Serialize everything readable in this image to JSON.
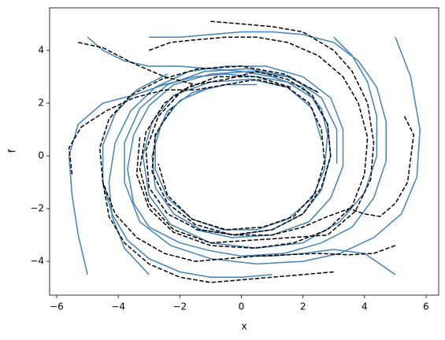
{
  "chart_data": {
    "type": "line",
    "xlabel": "x",
    "ylabel": "f",
    "xlim": [
      -6.23,
      6.41
    ],
    "ylim": [
      -5.28,
      5.61
    ],
    "xticks": [
      {
        "value": -6,
        "label": "−6"
      },
      {
        "value": -4,
        "label": "−4"
      },
      {
        "value": -2,
        "label": "−2"
      },
      0,
      2,
      4,
      6
    ],
    "yticks": [
      {
        "value": -4,
        "label": "−4"
      },
      {
        "value": -2,
        "label": "−2"
      },
      0,
      2,
      4
    ],
    "series": [
      {
        "color": "#4682b4",
        "dashed": false,
        "x": [
          -5,
          -4.5,
          -3.8,
          -3,
          -2,
          -1,
          0,
          1,
          2,
          2.6,
          2.8,
          2.7,
          2.3,
          1.5,
          0.5,
          -0.6,
          -1.6,
          -2.4,
          -2.8,
          -2.8,
          -2.4,
          -1.6,
          -0.5,
          0.5
        ],
        "values": [
          4.5,
          4.0,
          3.6,
          3.4,
          3.4,
          3.3,
          3.2,
          3.0,
          2.6,
          1.8,
          0.8,
          -0.5,
          -1.6,
          -2.4,
          -2.8,
          -2.8,
          -2.4,
          -1.6,
          -0.5,
          0.7,
          1.7,
          2.4,
          2.7,
          2.7
        ]
      },
      {
        "color": "#4682b4",
        "dashed": false,
        "x": [
          -5,
          -5.3,
          -5.5,
          -5.6,
          -5.3,
          -4.5,
          -3.5,
          -2.5,
          -1.5,
          -0.5,
          0.5,
          1.5,
          2.3,
          2.8,
          2.9,
          2.6,
          2,
          1,
          -0.2,
          -1.3,
          -2.2,
          -2.8,
          -2.9,
          -2.6,
          -2,
          -1
        ],
        "values": [
          -4.5,
          -3,
          -1.5,
          0,
          1.2,
          2,
          2.3,
          2.7,
          3.0,
          3.1,
          3.0,
          2.8,
          2.2,
          1.2,
          0,
          -1.3,
          -2.2,
          -2.8,
          -3.0,
          -2.8,
          -2.2,
          -1.2,
          0,
          1.2,
          2.1,
          2.6
        ]
      },
      {
        "color": "#4682b4",
        "dashed": false,
        "x": [
          3,
          3.6,
          4.1,
          4.4,
          4.4,
          4.0,
          3.2,
          2.0,
          0.5,
          -1,
          -2.3,
          -3.0,
          -3.2,
          -2.9,
          -2.2,
          -1,
          0.3,
          1.5,
          2.3,
          2.6
        ],
        "values": [
          4.5,
          3.8,
          2.8,
          1.5,
          0,
          -1.4,
          -2.5,
          -3.3,
          -3.5,
          -3.3,
          -2.6,
          -1.5,
          0,
          1.3,
          2.3,
          2.8,
          2.9,
          2.6,
          1.8,
          0.6
        ]
      },
      {
        "color": "#4682b4",
        "dashed": false,
        "x": [
          5,
          5.5,
          5.8,
          5.7,
          5.2,
          4.3,
          3.2,
          2,
          0.5,
          -1,
          -2.3,
          -3.3,
          -3.8,
          -3.8,
          -3.3,
          -2.4,
          -1.2,
          0.2,
          1.6,
          2.6,
          3.1,
          3.1
        ],
        "values": [
          4.5,
          3,
          1,
          -0.8,
          -2.2,
          -3.1,
          -3.7,
          -4,
          -4.1,
          -3.9,
          -3.4,
          -2.5,
          -1,
          0.5,
          1.8,
          2.7,
          3.2,
          3.3,
          3.0,
          2.2,
          1.0,
          -0.3
        ]
      },
      {
        "color": "#4682b4",
        "dashed": false,
        "x": [
          5,
          4,
          3,
          2,
          1,
          0,
          -1,
          -2,
          -3,
          -3.5,
          -3.7,
          -3.5,
          -3,
          -2.2,
          -1,
          0.3,
          1.5,
          2.5
        ],
        "values": [
          -4.5,
          -3.7,
          -3.55,
          -3.7,
          -3.8,
          -3.8,
          -3.6,
          -3.3,
          -2.7,
          -1.8,
          -0.5,
          0.8,
          1.9,
          2.7,
          3.1,
          3.2,
          3.0,
          2.4
        ]
      },
      {
        "color": "#4682b4",
        "dashed": false,
        "x": [
          -3,
          -3.8,
          -4.2,
          -4.3,
          -4.1,
          -3.6,
          -2.8,
          -1.7,
          -0.5,
          0.8,
          2,
          2.9,
          3.3,
          3.3,
          2.9,
          2.2,
          1,
          -0.3,
          -1.5
        ],
        "values": [
          -4.5,
          -3.5,
          -2.3,
          -1,
          0.5,
          1.7,
          2.6,
          3.2,
          3.4,
          3.4,
          3.0,
          2.2,
          1.0,
          -0.4,
          -1.6,
          -2.5,
          -3,
          -3.1,
          -2.8
        ]
      },
      {
        "color": "#4682b4",
        "dashed": false,
        "x": [
          -3,
          -2,
          -1,
          0,
          1,
          2,
          3,
          3.8,
          4.4,
          4.7,
          4.7,
          4.3,
          3.6,
          2.6,
          1.4,
          0
        ],
        "values": [
          4.5,
          4.5,
          4.6,
          4.7,
          4.7,
          4.6,
          4.3,
          3.6,
          2.6,
          1.3,
          -0.2,
          -1.6,
          -2.7,
          -3.3,
          -3.7,
          -3.8
        ]
      },
      {
        "color": "#4682b4",
        "dashed": false,
        "x": [
          1,
          0,
          -1,
          -2,
          -3,
          -3.7,
          -4.2,
          -4.5,
          -4.5,
          -4.1,
          -3.4,
          -2.4
        ],
        "values": [
          -4.5,
          -4.6,
          -4.6,
          -4.4,
          -3.9,
          -3.2,
          -2.2,
          -1,
          0.4,
          1.6,
          2.5,
          3.1
        ]
      },
      {
        "color": "#000000",
        "dashed": true,
        "x": [
          -5.3,
          -4.5,
          -3.5,
          -2.5,
          -1.5,
          -0.5,
          0.5,
          1.5,
          2.3,
          2.8,
          2.9,
          2.6,
          2,
          1,
          -0.3,
          -1.5,
          -2.4,
          -2.9,
          -2.8,
          -2.2
        ],
        "values": [
          4.3,
          4.1,
          3.5,
          3.0,
          2.7,
          2.9,
          3.2,
          2.9,
          2.3,
          1.2,
          0,
          -1.2,
          -2.2,
          -2.8,
          -3.0,
          -2.6,
          -1.8,
          -0.6,
          0.8,
          1.9
        ]
      },
      {
        "color": "#000000",
        "dashed": true,
        "x": [
          -5.5,
          -5.6,
          -5.2,
          -4.4,
          -3.5,
          -2.5,
          -1.5,
          -0.5,
          0.5,
          1.5,
          2.2,
          2.6,
          2.7,
          2.4,
          1.7,
          0.7,
          -0.5,
          -1.6,
          -2.4,
          -2.7
        ],
        "values": [
          -0.7,
          0.3,
          1.1,
          1.7,
          2.2,
          2.5,
          2.5,
          2.7,
          2.9,
          2.6,
          2.0,
          1,
          -0.2,
          -1.4,
          -2.3,
          -2.7,
          -2.8,
          -2.4,
          -1.5,
          -0.3
        ]
      },
      {
        "color": "#000000",
        "dashed": true,
        "x": [
          -1,
          0,
          1,
          2,
          3,
          3.6,
          4.1,
          4.3,
          4.2,
          3.7,
          2.8,
          1.6,
          0.3,
          -1,
          -2.2,
          -3,
          -3.3,
          -3.1,
          -2.5,
          -1.6
        ],
        "values": [
          5.1,
          5.0,
          4.9,
          4.7,
          4.0,
          3.2,
          2.0,
          0.5,
          -0.9,
          -2.1,
          -3.0,
          -3.1,
          -3.2,
          -3.3,
          -2.8,
          -1.8,
          -0.5,
          0.9,
          2.0,
          2.7
        ]
      },
      {
        "color": "#000000",
        "dashed": true,
        "x": [
          5.3,
          5.6,
          5.4,
          5,
          4.5,
          4,
          3.5,
          2.8,
          2,
          1,
          -0.2,
          -1.4,
          -2.4,
          -3,
          -3.1,
          -2.7,
          -1.9,
          -0.8,
          0.5,
          1.6
        ],
        "values": [
          1.5,
          0.8,
          -1,
          -1.8,
          -2.3,
          -2.2,
          -2.0,
          -2.3,
          -2.7,
          -3,
          -3,
          -2.8,
          -2.2,
          -1.2,
          0.2,
          1.5,
          2.5,
          3,
          3,
          2.6
        ]
      },
      {
        "color": "#000000",
        "dashed": true,
        "x": [
          5,
          4.3,
          3.5,
          2.5,
          1.5,
          0.5,
          -0.5,
          -1.5,
          -2.5,
          -3.4,
          -4.1,
          -4.5,
          -4.6,
          -4.3,
          -3.6,
          -2.6,
          -1.4,
          0,
          1.4,
          2.5
        ],
        "values": [
          -3.4,
          -3.7,
          -3.75,
          -3.7,
          -3.75,
          -3.8,
          -3.9,
          -4.0,
          -3.7,
          -3.1,
          -2.2,
          -1,
          0.3,
          1.4,
          2.3,
          2.9,
          3.3,
          3.4,
          3.1,
          2.4
        ]
      },
      {
        "color": "#000000",
        "dashed": true,
        "x": [
          3,
          2,
          1,
          0,
          -1,
          -2,
          -3,
          -3.8,
          -4.3,
          -4.5
        ],
        "values": [
          -4.4,
          -4.5,
          -4.6,
          -4.7,
          -4.8,
          -4.6,
          -4.1,
          -3.3,
          -2.3,
          -1
        ]
      },
      {
        "color": "#000000",
        "dashed": true,
        "x": [
          -3,
          -2.3,
          -1.5,
          -0.5,
          0.5,
          1.5,
          2.5,
          3.3,
          3.8,
          4.1,
          4.0,
          3.6,
          2.8,
          1.7,
          0.4,
          -1,
          -2.2,
          -3,
          -3.4,
          -3.3
        ],
        "values": [
          4,
          4.3,
          4.4,
          4.5,
          4.5,
          4.3,
          3.8,
          3.0,
          2.0,
          0.7,
          -0.7,
          -1.9,
          -2.8,
          -3.3,
          -3.5,
          -3.4,
          -2.9,
          -2,
          -0.7,
          0.7
        ]
      }
    ]
  }
}
